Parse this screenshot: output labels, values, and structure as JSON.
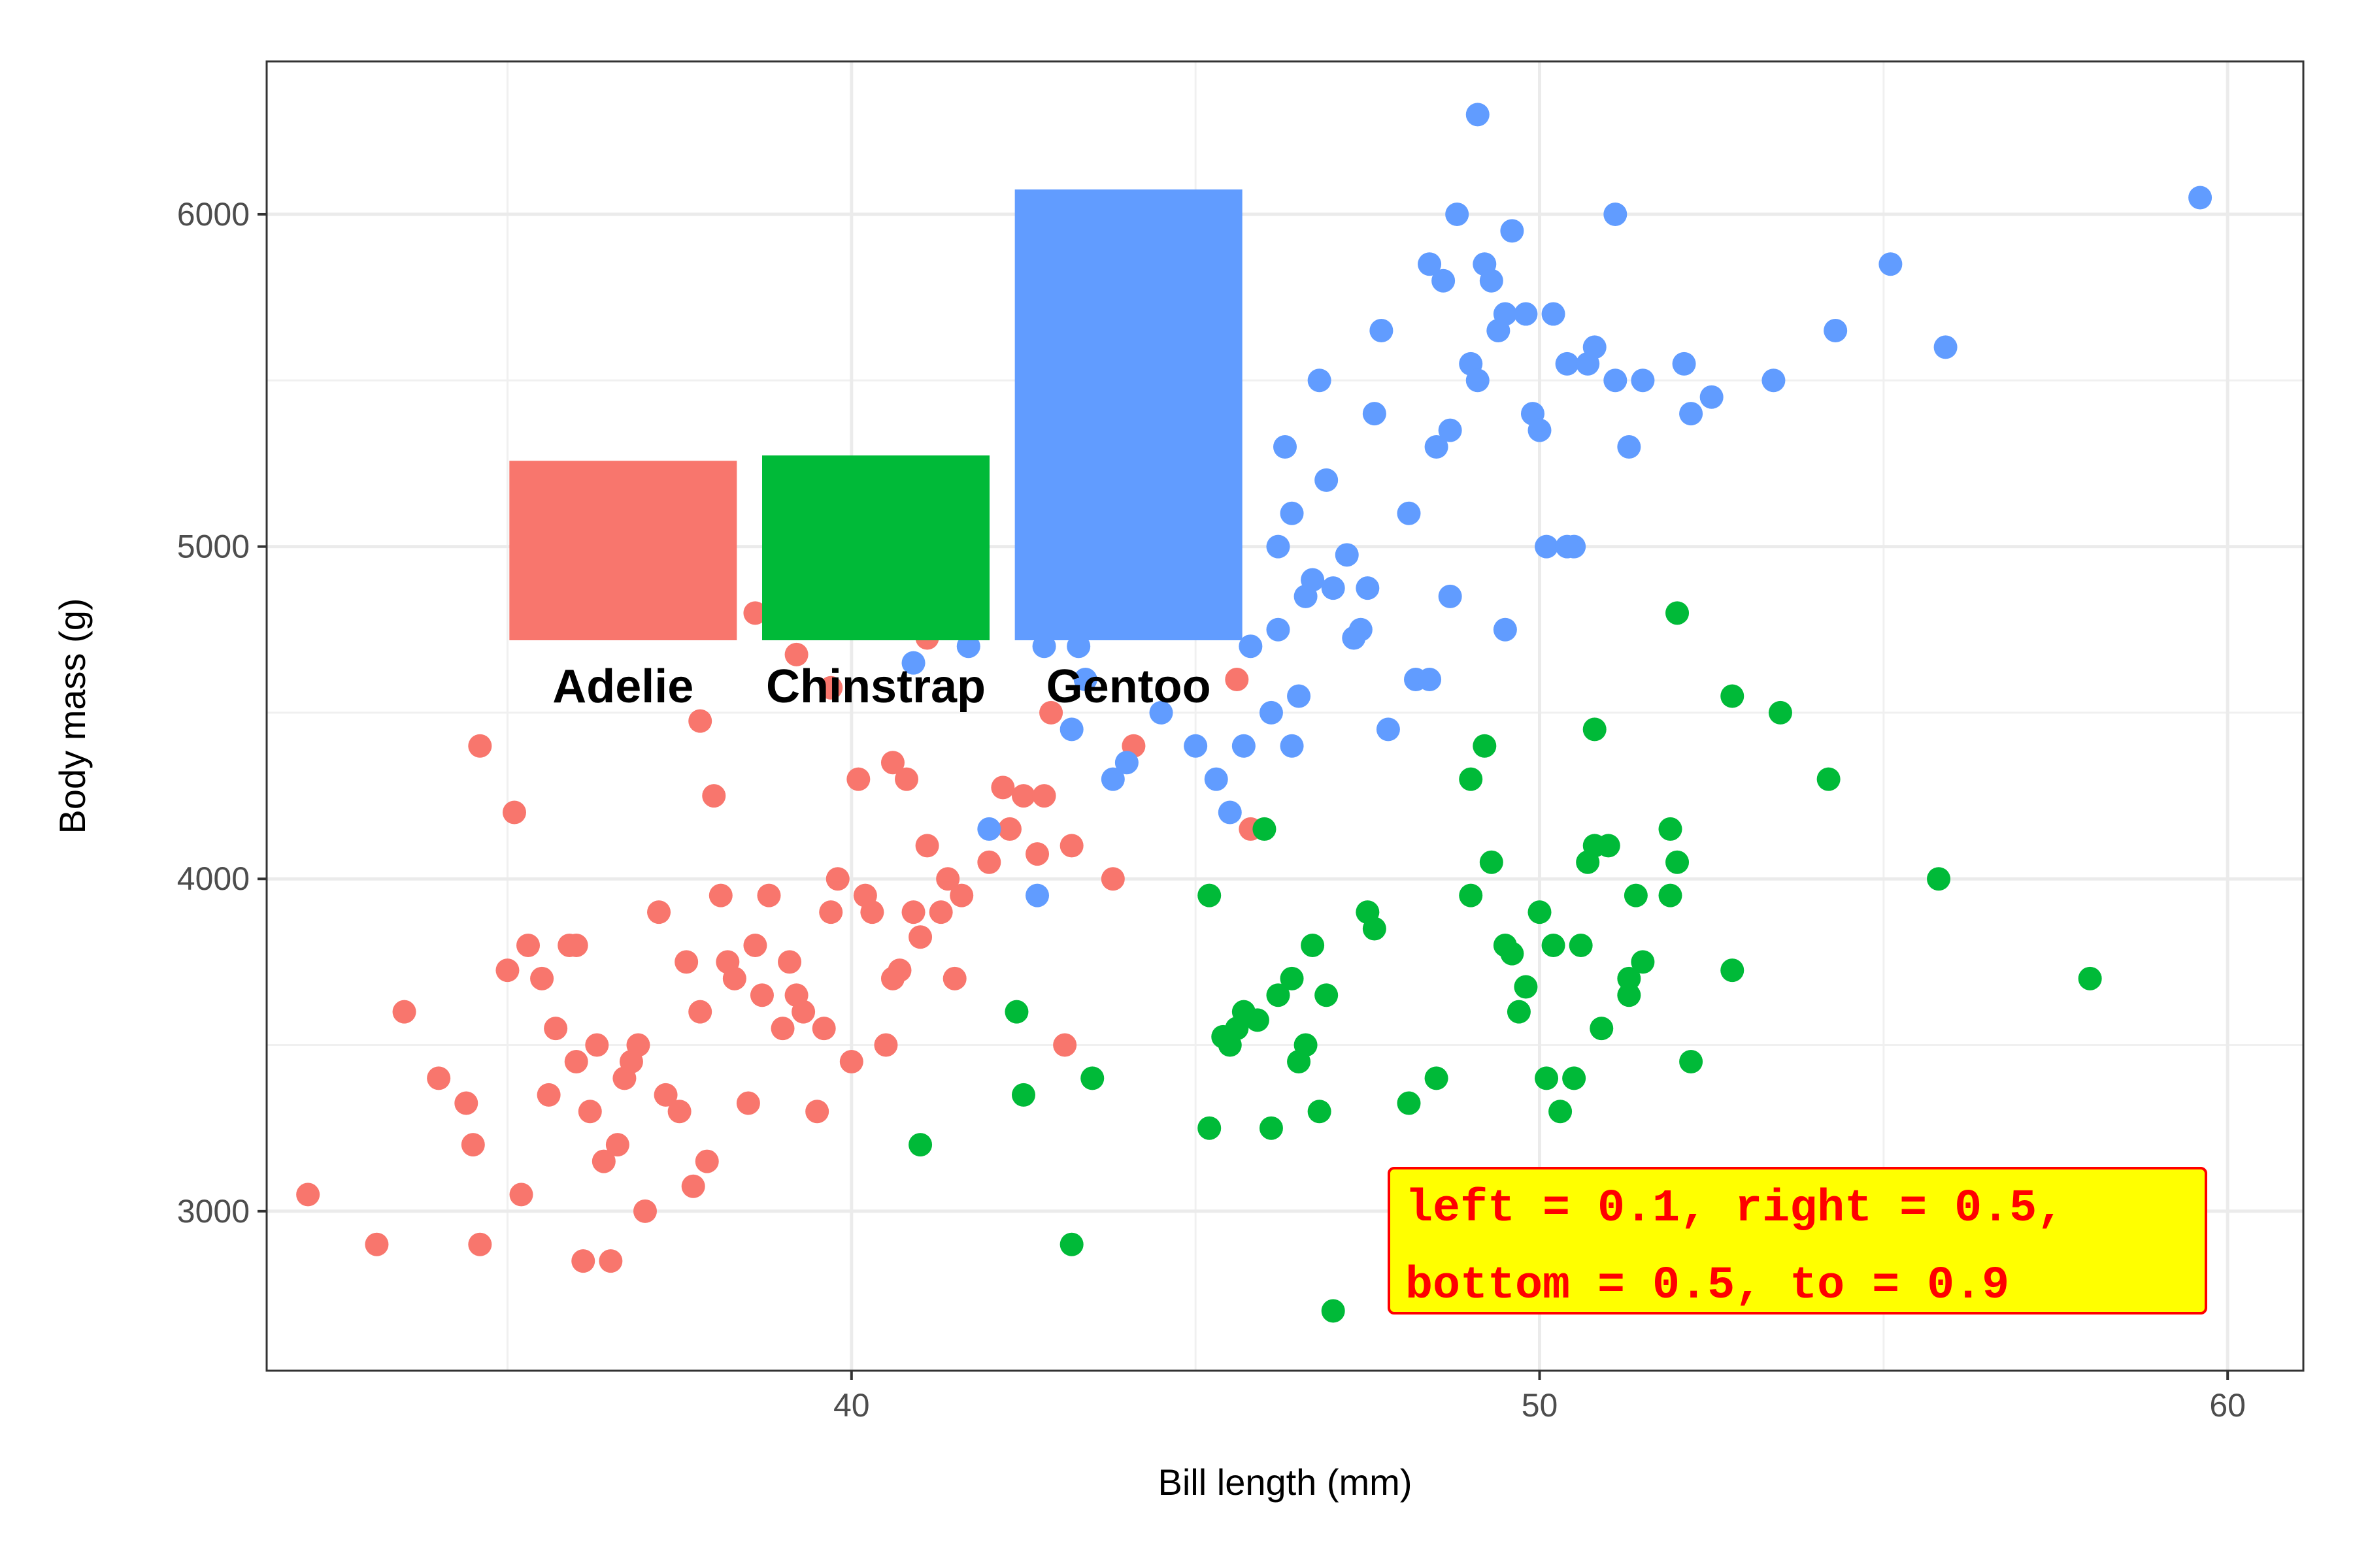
{
  "chart_data": {
    "type": "scatter",
    "xlabel": "Bill length (mm)",
    "ylabel": "Body mass (g)",
    "xlim": [
      31.5,
      61.1
    ],
    "ylim": [
      2520,
      6460
    ],
    "xticks": [
      40,
      50,
      60
    ],
    "yticks": [
      3000,
      4000,
      5000,
      6000
    ],
    "grid": true,
    "colors": {
      "Adelie": "#F8766D",
      "Chinstrap": "#00BA38",
      "Gentoo": "#619CFF"
    },
    "series": [
      {
        "name": "Adelie",
        "points": [
          [
            32.1,
            3050
          ],
          [
            33.1,
            2900
          ],
          [
            34.6,
            2900
          ],
          [
            34.0,
            3400
          ],
          [
            33.5,
            3600
          ],
          [
            34.4,
            3325
          ],
          [
            34.5,
            3200
          ],
          [
            34.6,
            4400
          ],
          [
            35.0,
            3725
          ],
          [
            35.1,
            4200
          ],
          [
            35.2,
            3050
          ],
          [
            35.3,
            3800
          ],
          [
            35.5,
            3700
          ],
          [
            35.6,
            3350
          ],
          [
            35.7,
            3550
          ],
          [
            35.9,
            3800
          ],
          [
            36.0,
            3450
          ],
          [
            36.0,
            3800
          ],
          [
            36.2,
            3300
          ],
          [
            36.3,
            3500
          ],
          [
            36.4,
            3150
          ],
          [
            36.5,
            2850
          ],
          [
            36.6,
            3200
          ],
          [
            36.7,
            3400
          ],
          [
            36.8,
            3450
          ],
          [
            36.9,
            3500
          ],
          [
            37.0,
            3000
          ],
          [
            37.2,
            3900
          ],
          [
            37.3,
            3350
          ],
          [
            37.5,
            3300
          ],
          [
            37.6,
            3750
          ],
          [
            37.7,
            3075
          ],
          [
            37.8,
            3600
          ],
          [
            37.9,
            3150
          ],
          [
            38.1,
            3950
          ],
          [
            38.2,
            3750
          ],
          [
            38.3,
            3700
          ],
          [
            38.5,
            3325
          ],
          [
            38.6,
            3800
          ],
          [
            38.7,
            3650
          ],
          [
            38.8,
            3950
          ],
          [
            39.0,
            3550
          ],
          [
            39.1,
            3750
          ],
          [
            39.2,
            3650
          ],
          [
            39.3,
            3600
          ],
          [
            39.5,
            3300
          ],
          [
            39.6,
            3550
          ],
          [
            39.7,
            3900
          ],
          [
            39.8,
            4000
          ],
          [
            40.0,
            3450
          ],
          [
            40.1,
            4300
          ],
          [
            40.2,
            3950
          ],
          [
            40.3,
            3900
          ],
          [
            40.5,
            3500
          ],
          [
            40.6,
            3700
          ],
          [
            40.7,
            3725
          ],
          [
            40.8,
            4300
          ],
          [
            40.9,
            3900
          ],
          [
            41.0,
            3825
          ],
          [
            41.1,
            4100
          ],
          [
            41.3,
            3900
          ],
          [
            41.4,
            4000
          ],
          [
            41.5,
            3700
          ],
          [
            41.6,
            3950
          ],
          [
            42.0,
            4050
          ],
          [
            42.2,
            4275
          ],
          [
            42.3,
            4150
          ],
          [
            42.5,
            4250
          ],
          [
            42.7,
            4075
          ],
          [
            42.8,
            4250
          ],
          [
            42.9,
            4500
          ],
          [
            43.1,
            3500
          ],
          [
            43.2,
            4100
          ],
          [
            43.8,
            4000
          ],
          [
            44.1,
            4400
          ],
          [
            45.6,
            4600
          ],
          [
            45.8,
            4150
          ],
          [
            36.1,
            2850
          ],
          [
            37.8,
            4475
          ],
          [
            38.0,
            4250
          ],
          [
            39.2,
            4675
          ],
          [
            40.6,
            4350
          ],
          [
            41.1,
            4725
          ],
          [
            39.7,
            4575
          ],
          [
            38.6,
            4800
          ]
        ]
      },
      {
        "name": "Chinstrap",
        "points": [
          [
            41.0,
            3200
          ],
          [
            42.4,
            3600
          ],
          [
            42.5,
            3350
          ],
          [
            43.2,
            2900
          ],
          [
            43.5,
            3400
          ],
          [
            45.2,
            3250
          ],
          [
            45.2,
            3950
          ],
          [
            45.4,
            3525
          ],
          [
            45.5,
            3500
          ],
          [
            45.6,
            3550
          ],
          [
            45.7,
            3600
          ],
          [
            45.9,
            3575
          ],
          [
            46.0,
            4150
          ],
          [
            46.1,
            3250
          ],
          [
            46.2,
            3650
          ],
          [
            46.4,
            3700
          ],
          [
            46.5,
            3450
          ],
          [
            46.6,
            3500
          ],
          [
            46.7,
            3800
          ],
          [
            46.8,
            3300
          ],
          [
            46.9,
            3650
          ],
          [
            47.0,
            2700
          ],
          [
            47.5,
            3900
          ],
          [
            47.6,
            3850
          ],
          [
            48.1,
            3325
          ],
          [
            48.5,
            3400
          ],
          [
            49.0,
            3950
          ],
          [
            49.2,
            4400
          ],
          [
            49.3,
            4050
          ],
          [
            49.5,
            3800
          ],
          [
            49.6,
            3775
          ],
          [
            49.7,
            3600
          ],
          [
            49.8,
            3675
          ],
          [
            50.0,
            3900
          ],
          [
            50.1,
            3400
          ],
          [
            50.2,
            3800
          ],
          [
            50.3,
            3300
          ],
          [
            50.5,
            3400
          ],
          [
            50.6,
            3800
          ],
          [
            50.7,
            4050
          ],
          [
            50.8,
            4100
          ],
          [
            50.9,
            3550
          ],
          [
            51.0,
            4100
          ],
          [
            51.3,
            3650
          ],
          [
            51.4,
            3950
          ],
          [
            51.5,
            3750
          ],
          [
            51.9,
            4150
          ],
          [
            52.0,
            4050
          ],
          [
            52.2,
            3450
          ],
          [
            52.8,
            3725
          ],
          [
            53.5,
            4500
          ],
          [
            54.2,
            4300
          ],
          [
            55.8,
            4000
          ],
          [
            58.0,
            3700
          ],
          [
            49.0,
            4300
          ],
          [
            52.0,
            4800
          ],
          [
            52.8,
            4550
          ],
          [
            51.9,
            3950
          ],
          [
            51.3,
            3700
          ],
          [
            50.8,
            4450
          ]
        ]
      },
      {
        "name": "Gentoo",
        "points": [
          [
            40.9,
            4650
          ],
          [
            41.7,
            4700
          ],
          [
            42.0,
            4150
          ],
          [
            42.7,
            3950
          ],
          [
            42.8,
            4700
          ],
          [
            43.2,
            4450
          ],
          [
            43.3,
            4700
          ],
          [
            43.4,
            4600
          ],
          [
            43.8,
            4300
          ],
          [
            44.0,
            4350
          ],
          [
            44.4,
            5250
          ],
          [
            45.0,
            4400
          ],
          [
            45.1,
            5000
          ],
          [
            45.2,
            5300
          ],
          [
            45.3,
            4300
          ],
          [
            45.4,
            4800
          ],
          [
            45.5,
            4200
          ],
          [
            45.7,
            4400
          ],
          [
            45.8,
            4700
          ],
          [
            46.1,
            4500
          ],
          [
            46.2,
            5000
          ],
          [
            46.3,
            5300
          ],
          [
            46.4,
            4400
          ],
          [
            46.5,
            4550
          ],
          [
            46.6,
            4850
          ],
          [
            46.7,
            4900
          ],
          [
            46.8,
            5500
          ],
          [
            46.9,
            5200
          ],
          [
            47.0,
            4875
          ],
          [
            47.2,
            4975
          ],
          [
            47.3,
            4725
          ],
          [
            47.4,
            4750
          ],
          [
            47.5,
            4875
          ],
          [
            47.6,
            5400
          ],
          [
            47.7,
            5650
          ],
          [
            48.1,
            5100
          ],
          [
            48.2,
            4600
          ],
          [
            48.4,
            5850
          ],
          [
            48.5,
            5300
          ],
          [
            48.6,
            5800
          ],
          [
            48.7,
            5350
          ],
          [
            48.8,
            6000
          ],
          [
            49.0,
            5550
          ],
          [
            49.1,
            6300
          ],
          [
            49.2,
            5850
          ],
          [
            49.3,
            5800
          ],
          [
            49.4,
            5650
          ],
          [
            49.5,
            5700
          ],
          [
            49.6,
            5950
          ],
          [
            49.8,
            5700
          ],
          [
            49.9,
            5400
          ],
          [
            50.0,
            5350
          ],
          [
            50.1,
            5000
          ],
          [
            50.2,
            5700
          ],
          [
            50.4,
            5550
          ],
          [
            50.5,
            5000
          ],
          [
            50.7,
            5550
          ],
          [
            50.8,
            5600
          ],
          [
            51.1,
            5500
          ],
          [
            51.3,
            5300
          ],
          [
            51.5,
            5500
          ],
          [
            52.1,
            5550
          ],
          [
            52.2,
            5400
          ],
          [
            52.5,
            5450
          ],
          [
            53.4,
            5500
          ],
          [
            54.3,
            5650
          ],
          [
            55.1,
            5850
          ],
          [
            55.9,
            5600
          ],
          [
            59.6,
            6050
          ],
          [
            45.2,
            5950
          ],
          [
            46.4,
            5100
          ],
          [
            47.8,
            4450
          ],
          [
            48.7,
            4850
          ],
          [
            49.1,
            5500
          ],
          [
            50.4,
            5000
          ],
          [
            51.1,
            6000
          ],
          [
            46.2,
            4750
          ],
          [
            44.5,
            4500
          ],
          [
            45.3,
            5200
          ],
          [
            48.4,
            4600
          ],
          [
            49.5,
            4750
          ]
        ]
      }
    ],
    "inset": {
      "type": "bar",
      "categories": [
        "Adelie",
        "Chinstrap",
        "Gentoo"
      ],
      "values": [
        3706,
        3733,
        5076
      ]
    },
    "annotation": [
      "left = 0.1, right = 0.5,",
      "bottom = 0.5, to = 0.9"
    ],
    "annotation_colors": {
      "text": "#FF0000",
      "fill": "#FFFF00",
      "border": "#FF0000"
    }
  }
}
